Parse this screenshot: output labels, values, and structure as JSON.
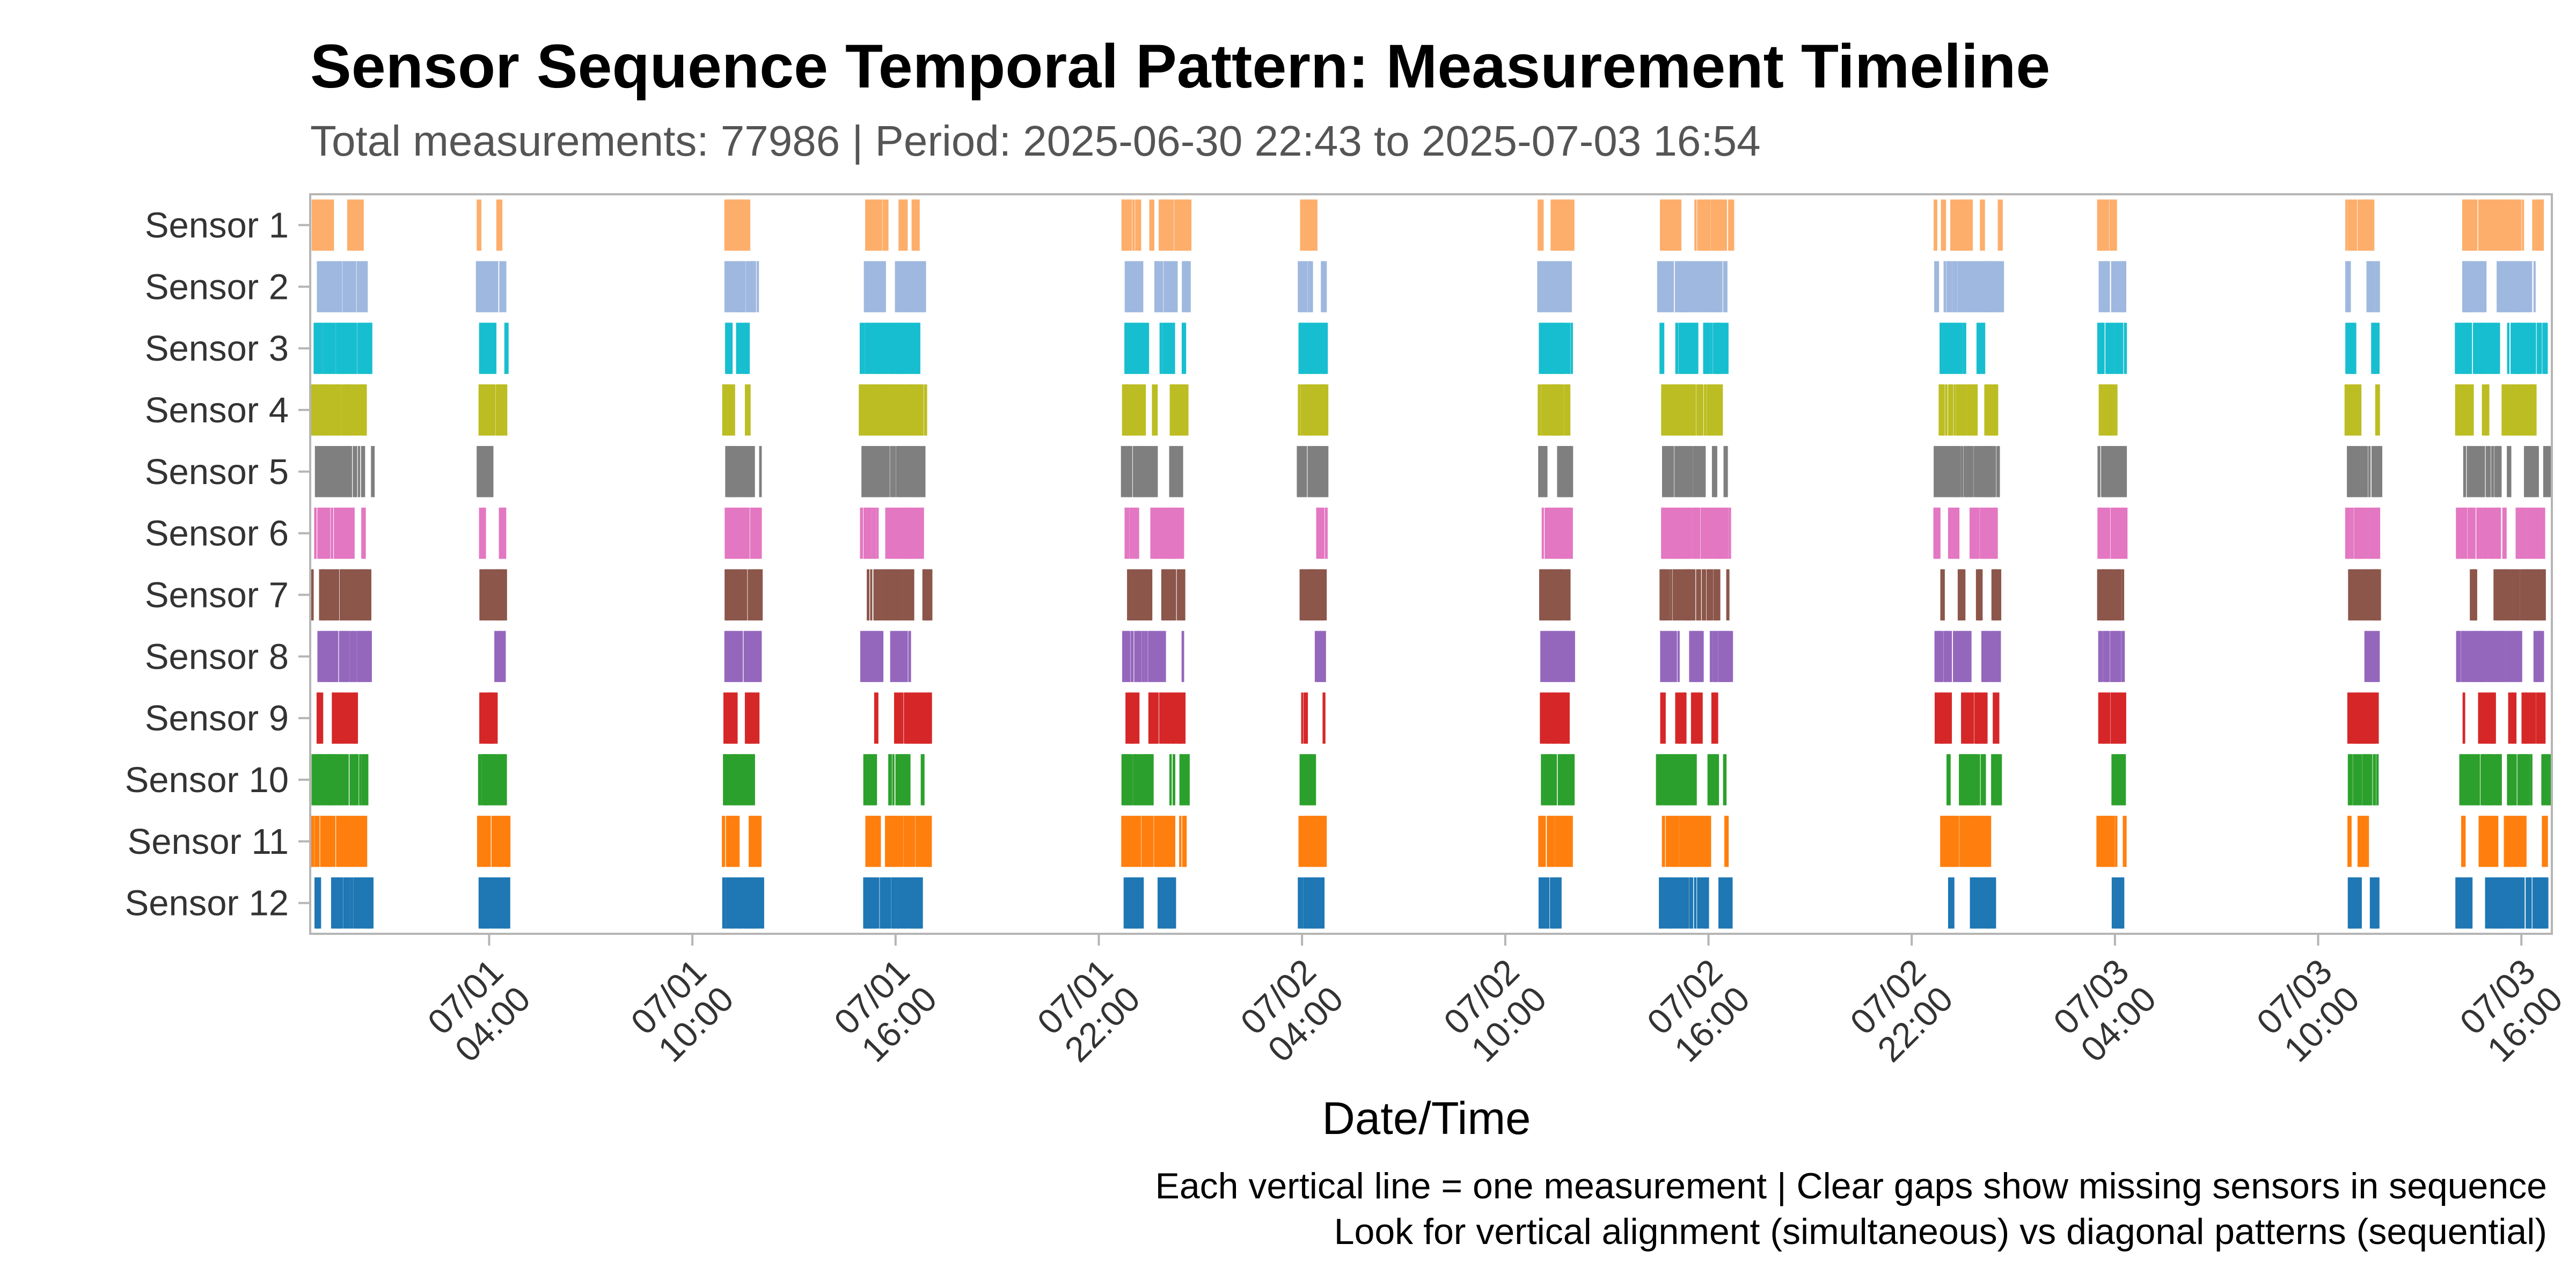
{
  "chart_data": {
    "type": "event-timeline",
    "title": "Sensor Sequence Temporal Pattern: Measurement Timeline",
    "subtitle": "Total measurements: 77986 | Period: 2025-06-30 22:43 to 2025-07-03 16:54",
    "xlabel": "Date/Time",
    "ylabel": "",
    "caption_line1": "Each vertical line = one measurement | Clear gaps show missing sensors in sequence",
    "caption_line2": "Look for vertical alignment (simultaneous) vs diagonal patterns (sequential)",
    "x_range": [
      "2025-06-30 22:43",
      "2025-07-03 16:54"
    ],
    "grid": false,
    "legend": "none",
    "x_ticks": [
      {
        "time": "2025-07-01 04:00",
        "line1": "07/01",
        "line2": "04:00"
      },
      {
        "time": "2025-07-01 10:00",
        "line1": "07/01",
        "line2": "10:00"
      },
      {
        "time": "2025-07-01 16:00",
        "line1": "07/01",
        "line2": "16:00"
      },
      {
        "time": "2025-07-01 22:00",
        "line1": "07/01",
        "line2": "22:00"
      },
      {
        "time": "2025-07-02 04:00",
        "line1": "07/02",
        "line2": "04:00"
      },
      {
        "time": "2025-07-02 10:00",
        "line1": "07/02",
        "line2": "10:00"
      },
      {
        "time": "2025-07-02 16:00",
        "line1": "07/02",
        "line2": "16:00"
      },
      {
        "time": "2025-07-02 22:00",
        "line1": "07/02",
        "line2": "22:00"
      },
      {
        "time": "2025-07-03 04:00",
        "line1": "07/03",
        "line2": "04:00"
      },
      {
        "time": "2025-07-03 10:00",
        "line1": "07/03",
        "line2": "10:00"
      },
      {
        "time": "2025-07-03 16:00",
        "line1": "07/03",
        "line2": "16:00"
      }
    ],
    "bursts": [
      [
        "2025-06-30 22:43",
        "2025-07-01 00:35"
      ],
      [
        "2025-07-01 03:40",
        "2025-07-01 04:35"
      ],
      [
        "2025-07-01 10:55",
        "2025-07-01 12:05"
      ],
      [
        "2025-07-01 14:55",
        "2025-07-01 17:05"
      ],
      [
        "2025-07-01 22:40",
        "2025-07-02 00:45"
      ],
      [
        "2025-07-02 03:55",
        "2025-07-02 04:45"
      ],
      [
        "2025-07-02 11:00",
        "2025-07-02 12:05"
      ],
      [
        "2025-07-02 14:30",
        "2025-07-02 16:45"
      ],
      [
        "2025-07-02 22:40",
        "2025-07-03 00:45"
      ],
      [
        "2025-07-03 03:30",
        "2025-07-03 04:20"
      ],
      [
        "2025-07-03 10:50",
        "2025-07-03 11:50"
      ],
      [
        "2025-07-03 14:05",
        "2025-07-03 16:54"
      ]
    ],
    "series": [
      {
        "name": "Sensor 1",
        "color": "#FDAE6B"
      },
      {
        "name": "Sensor 2",
        "color": "#9FB8DF"
      },
      {
        "name": "Sensor 3",
        "color": "#17BECF"
      },
      {
        "name": "Sensor 4",
        "color": "#BCBD22"
      },
      {
        "name": "Sensor 5",
        "color": "#7F7F7F"
      },
      {
        "name": "Sensor 6",
        "color": "#E377C2"
      },
      {
        "name": "Sensor 7",
        "color": "#8C564B"
      },
      {
        "name": "Sensor 8",
        "color": "#9467BD"
      },
      {
        "name": "Sensor 9",
        "color": "#D62728"
      },
      {
        "name": "Sensor 10",
        "color": "#2CA02C"
      },
      {
        "name": "Sensor 11",
        "color": "#FF7F0E"
      },
      {
        "name": "Sensor 12",
        "color": "#1F77B4"
      }
    ]
  }
}
